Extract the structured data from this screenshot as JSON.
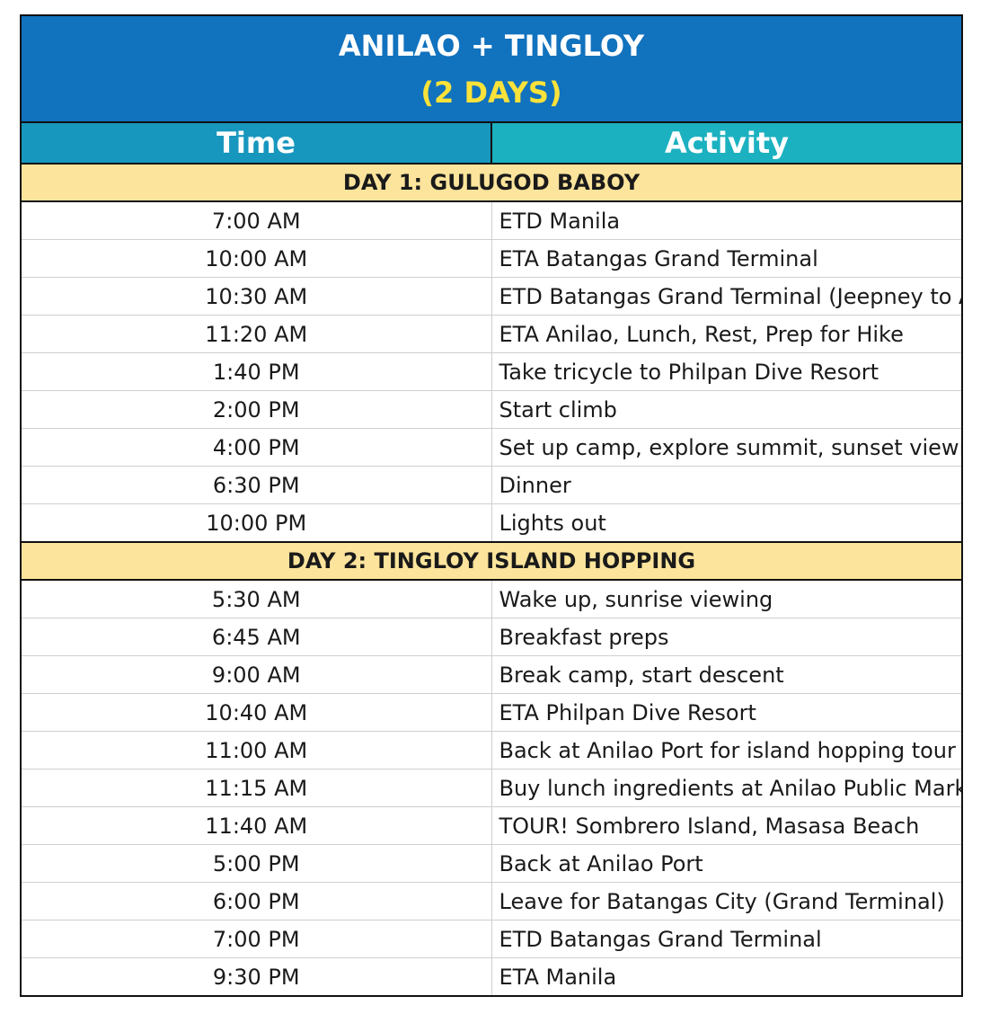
{
  "title": "ANILAO + TINGLOY",
  "subtitle": "(2 DAYS)",
  "headers": {
    "time": "Time",
    "activity": "Activity"
  },
  "colors": {
    "title_bg": "#1172be",
    "subtitle": "#f9e23a",
    "time_header": "#1897be",
    "activity_header": "#1cb1c0",
    "day_band": "#fce49c"
  },
  "days": [
    {
      "label": "DAY 1: GULUGOD BABOY",
      "rows": [
        {
          "time": "7:00 AM",
          "activity": "ETD Manila"
        },
        {
          "time": "10:00 AM",
          "activity": "ETA Batangas Grand Terminal"
        },
        {
          "time": "10:30 AM",
          "activity": "ETD Batangas Grand Terminal (Jeepney to Anilao)"
        },
        {
          "time": "11:20 AM",
          "activity": "ETA Anilao, Lunch, Rest, Prep for Hike"
        },
        {
          "time": "1:40 PM",
          "activity": "Take tricycle to Philpan Dive Resort"
        },
        {
          "time": "2:00 PM",
          "activity": "Start climb"
        },
        {
          "time": "4:00 PM",
          "activity": "Set up camp, explore summit, sunset viewing"
        },
        {
          "time": "6:30 PM",
          "activity": "Dinner"
        },
        {
          "time": "10:00 PM",
          "activity": "Lights out"
        }
      ]
    },
    {
      "label": "DAY 2: TINGLOY ISLAND HOPPING",
      "rows": [
        {
          "time": "5:30 AM",
          "activity": "Wake up, sunrise viewing"
        },
        {
          "time": "6:45 AM",
          "activity": "Breakfast preps"
        },
        {
          "time": "9:00 AM",
          "activity": "Break camp, start descent"
        },
        {
          "time": "10:40 AM",
          "activity": "ETA Philpan Dive Resort"
        },
        {
          "time": "11:00 AM",
          "activity": "Back at Anilao Port for island hopping tour"
        },
        {
          "time": "11:15 AM",
          "activity": "Buy lunch ingredients at Anilao Public Market"
        },
        {
          "time": "11:40 AM",
          "activity": "TOUR! Sombrero Island, Masasa Beach"
        },
        {
          "time": "5:00 PM",
          "activity": "Back at Anilao Port"
        },
        {
          "time": "6:00 PM",
          "activity": "Leave for Batangas City (Grand Terminal)"
        },
        {
          "time": "7:00 PM",
          "activity": "ETD Batangas Grand Terminal"
        },
        {
          "time": "9:30 PM",
          "activity": "ETA Manila"
        }
      ]
    }
  ]
}
